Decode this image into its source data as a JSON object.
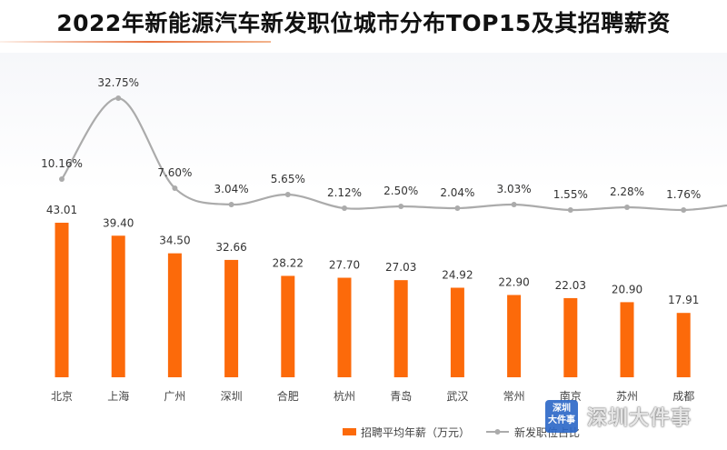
{
  "title": "2022年新能源汽车新发职位城市分布TOP15及其招聘薪资",
  "chart_data": {
    "type": "bar+line",
    "categories": [
      "北京",
      "上海",
      "广州",
      "深圳",
      "合肥",
      "杭州",
      "青岛",
      "武汉",
      "常州",
      "南京",
      "苏州",
      "成都"
    ],
    "series": [
      {
        "name": "招聘平均年薪（万元）",
        "type": "bar",
        "color": "#fc6a0a",
        "values": [
          43.01,
          39.4,
          34.5,
          32.66,
          28.22,
          27.7,
          27.03,
          24.92,
          22.9,
          22.03,
          20.9,
          17.91
        ],
        "labels": [
          "43.01",
          "39.40",
          "34.50",
          "32.66",
          "28.22",
          "27.70",
          "27.03",
          "24.92",
          "22.90",
          "22.03",
          "20.90",
          "17.91"
        ]
      },
      {
        "name": "新发职位占比",
        "type": "line",
        "color": "#ababab",
        "values": [
          10.16,
          32.75,
          7.6,
          3.04,
          5.65,
          2.12,
          2.5,
          2.04,
          3.03,
          1.55,
          2.28,
          1.76
        ],
        "labels": [
          "10.16%",
          "32.75%",
          "7.60%",
          "3.04%",
          "5.65%",
          "2.12%",
          "2.50%",
          "2.04%",
          "3.03%",
          "1.55%",
          "2.28%",
          "1.76%"
        ]
      }
    ],
    "bar_axis_ylim": [
      0,
      43.01
    ],
    "grid": false,
    "legend_position": "bottom-center"
  },
  "watermark": {
    "logo_line1": "深圳",
    "logo_line2": "大件事",
    "text": "深圳大件事"
  }
}
